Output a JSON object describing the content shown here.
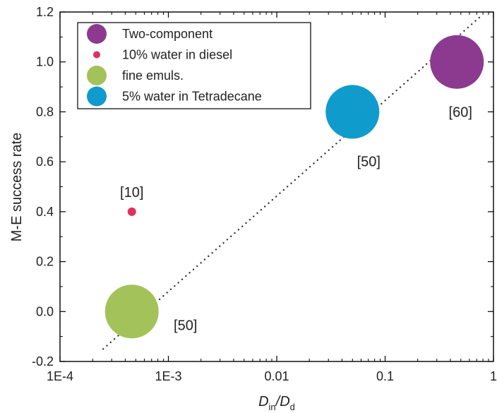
{
  "chart_data": {
    "type": "scatter",
    "xlabel_main": "D",
    "xlabel_sub1": "in",
    "xlabel_sep": "/D",
    "xlabel_sub2": "d",
    "ylabel": "M-E success rate",
    "x_scale": "log",
    "xlim": [
      0.0001,
      1
    ],
    "ylim": [
      -0.2,
      1.2
    ],
    "x_ticks": [
      0.0001,
      0.001,
      0.01,
      0.1,
      1
    ],
    "x_tick_labels": [
      "1E-4",
      "1E-3",
      "0.01",
      "0.1",
      "1"
    ],
    "y_ticks": [
      -0.2,
      0.0,
      0.2,
      0.4,
      0.6,
      0.8,
      1.0,
      1.2
    ],
    "y_tick_labels": [
      "-0.2",
      "0.0",
      "0.2",
      "0.4",
      "0.6",
      "0.8",
      "1.0",
      "1.2"
    ],
    "grid": false,
    "legend_position": "top-left",
    "series": [
      {
        "name": "Two-component",
        "color": "#8b3a8f",
        "x": 0.46,
        "y": 1.0,
        "size": "large",
        "annotation": "[60]"
      },
      {
        "name": "10% water in diesel",
        "color": "#e0305e",
        "x": 0.00046,
        "y": 0.4,
        "size": "small",
        "annotation": "[10]"
      },
      {
        "name": "fine emuls.",
        "color": "#a3c25a",
        "x": 0.00046,
        "y": 0.0,
        "size": "large",
        "annotation": "[50]"
      },
      {
        "name": "5% water in Tetradecane",
        "color": "#0f9bcb",
        "x": 0.05,
        "y": 0.8,
        "size": "large",
        "annotation": "[50]"
      }
    ],
    "trendline": {
      "style": "dotted",
      "x": [
        0.00025,
        0.75
      ],
      "y": [
        -0.15,
        1.18
      ]
    }
  }
}
